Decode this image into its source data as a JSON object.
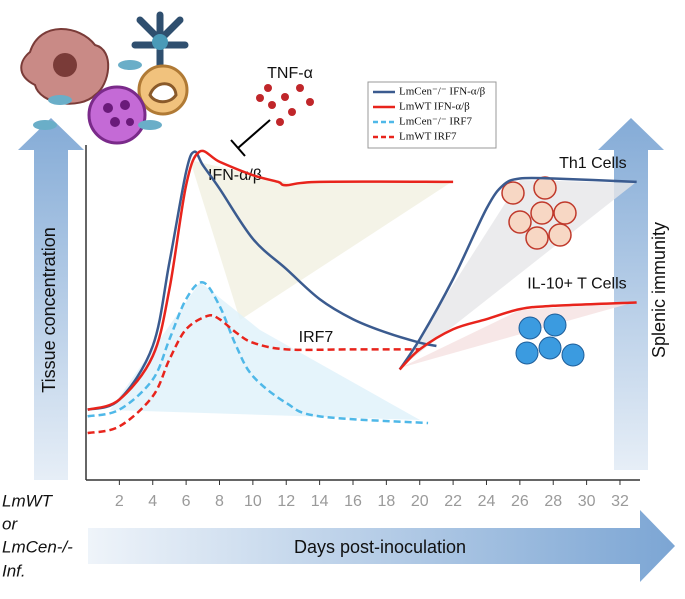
{
  "chart_data": {
    "type": "line",
    "xlim": [
      0,
      33.2
    ],
    "ylim": [
      0,
      100
    ],
    "xticks": [
      2,
      4,
      6,
      8,
      10,
      12,
      14,
      16,
      18,
      20,
      22,
      24,
      26,
      28,
      30,
      32
    ],
    "left_axis_label": "Tissue concentration",
    "right_axis_label": "Splenic immunity",
    "x_axis_label": "Days post-inoculation",
    "infection_label": [
      "LmWT",
      "or",
      "LmCen-/-",
      "Inf."
    ],
    "annotations": {
      "tnf": "TNF-α",
      "ifn": "IFN-α/β",
      "irf7": "IRF7"
    },
    "series": [
      {
        "name": "LmCen⁻/⁻ IFN-α/β",
        "color": "#3b5b8f",
        "dash": false,
        "in_legend": true,
        "x": [
          0.1,
          2,
          4,
          5,
          6,
          6.5,
          7,
          8,
          10,
          12,
          14,
          16,
          18,
          20,
          21
        ],
        "values": [
          21,
          24,
          40,
          65,
          92,
          98,
          94,
          87,
          72,
          63,
          54,
          48,
          44,
          41,
          40
        ]
      },
      {
        "name": "LmWT IFN-α/β",
        "color": "#e8241c",
        "dash": false,
        "in_legend": true,
        "x": [
          0.1,
          2,
          4,
          5,
          6,
          6.8,
          8,
          10,
          11.5,
          12,
          14,
          22
        ],
        "values": [
          21,
          24,
          37,
          57,
          88,
          98,
          95,
          91,
          89,
          88,
          89,
          89
        ]
      },
      {
        "name": "LmCen⁻/⁻ IRF7",
        "color": "#4fb8e8",
        "dash": true,
        "in_legend": true,
        "x": [
          0.1,
          2,
          4,
          5,
          6,
          7,
          8,
          9,
          10,
          12,
          14,
          20.5
        ],
        "values": [
          19,
          21,
          30,
          42,
          54,
          59,
          52,
          40,
          31,
          23,
          19,
          17
        ]
      },
      {
        "name": "LmWT IRF7",
        "color": "#e8241c",
        "dash": true,
        "in_legend": true,
        "x": [
          0.1,
          2,
          4,
          5,
          6,
          7.3,
          8,
          9,
          10,
          12,
          16,
          20
        ],
        "values": [
          14,
          16,
          25,
          36,
          45,
          49,
          48,
          44,
          41,
          39,
          39,
          39
        ]
      },
      {
        "name": "Th1 Cells",
        "color": "#3b5b8f",
        "dash": false,
        "in_legend": false,
        "x": [
          18.8,
          20,
          22,
          24,
          25,
          26,
          28,
          33
        ],
        "values": [
          33,
          42,
          60,
          81,
          88,
          90,
          90,
          89
        ]
      },
      {
        "name": "IL-10+ T Cells",
        "color": "#e8241c",
        "dash": false,
        "in_legend": false,
        "x": [
          18.8,
          20,
          22,
          24,
          26,
          28,
          33
        ],
        "values": [
          33,
          39,
          45,
          48,
          51,
          52,
          53
        ]
      }
    ]
  }
}
